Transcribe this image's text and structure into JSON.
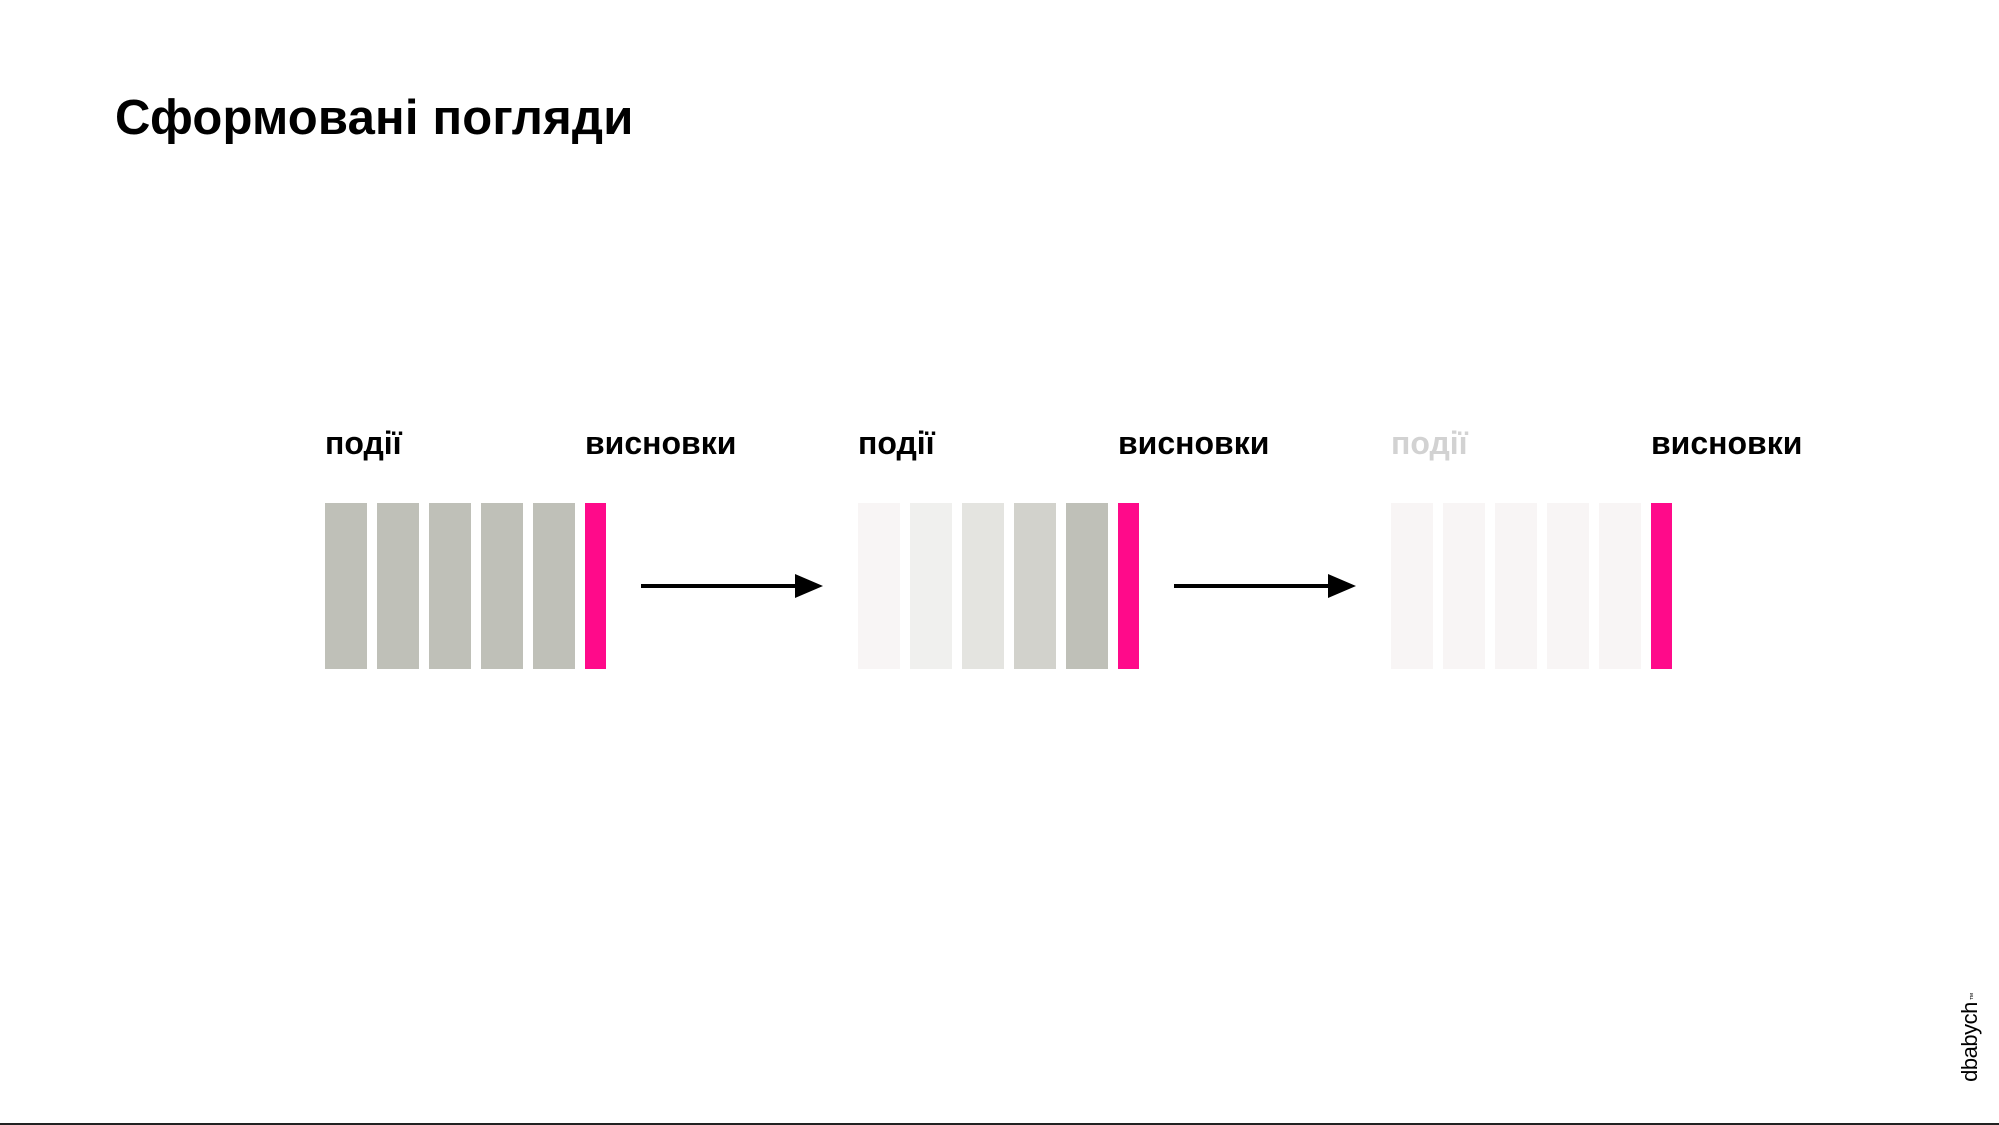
{
  "title": "Сформовані погляди",
  "stages": [
    {
      "events_label": "події",
      "conclusions_label": "висновки",
      "events_label_color": "#000000",
      "event_bar_colors": [
        "#bfc0b8",
        "#bfc0b8",
        "#bfc0b8",
        "#bfc0b8",
        "#bfc0b8"
      ],
      "conclusion_color": "#ff0a8a"
    },
    {
      "events_label": "події",
      "conclusions_label": "висновки",
      "events_label_color": "#000000",
      "event_bar_colors": [
        "#f8f5f5",
        "#f0f0ee",
        "#e4e4e0",
        "#d2d2cc",
        "#bfc0b8"
      ],
      "conclusion_color": "#ff0a8a"
    },
    {
      "events_label": "події",
      "conclusions_label": "висновки",
      "events_label_color": "#d2d2d2",
      "event_bar_colors": [
        "#f8f5f5",
        "#f8f5f5",
        "#f8f5f5",
        "#f8f5f5",
        "#f8f5f5"
      ],
      "conclusion_color": "#ff0a8a"
    }
  ],
  "arrow_color": "#000000",
  "arrow_icon": "right-arrow-icon",
  "logo": {
    "text": "dbabych",
    "mark": "™"
  }
}
